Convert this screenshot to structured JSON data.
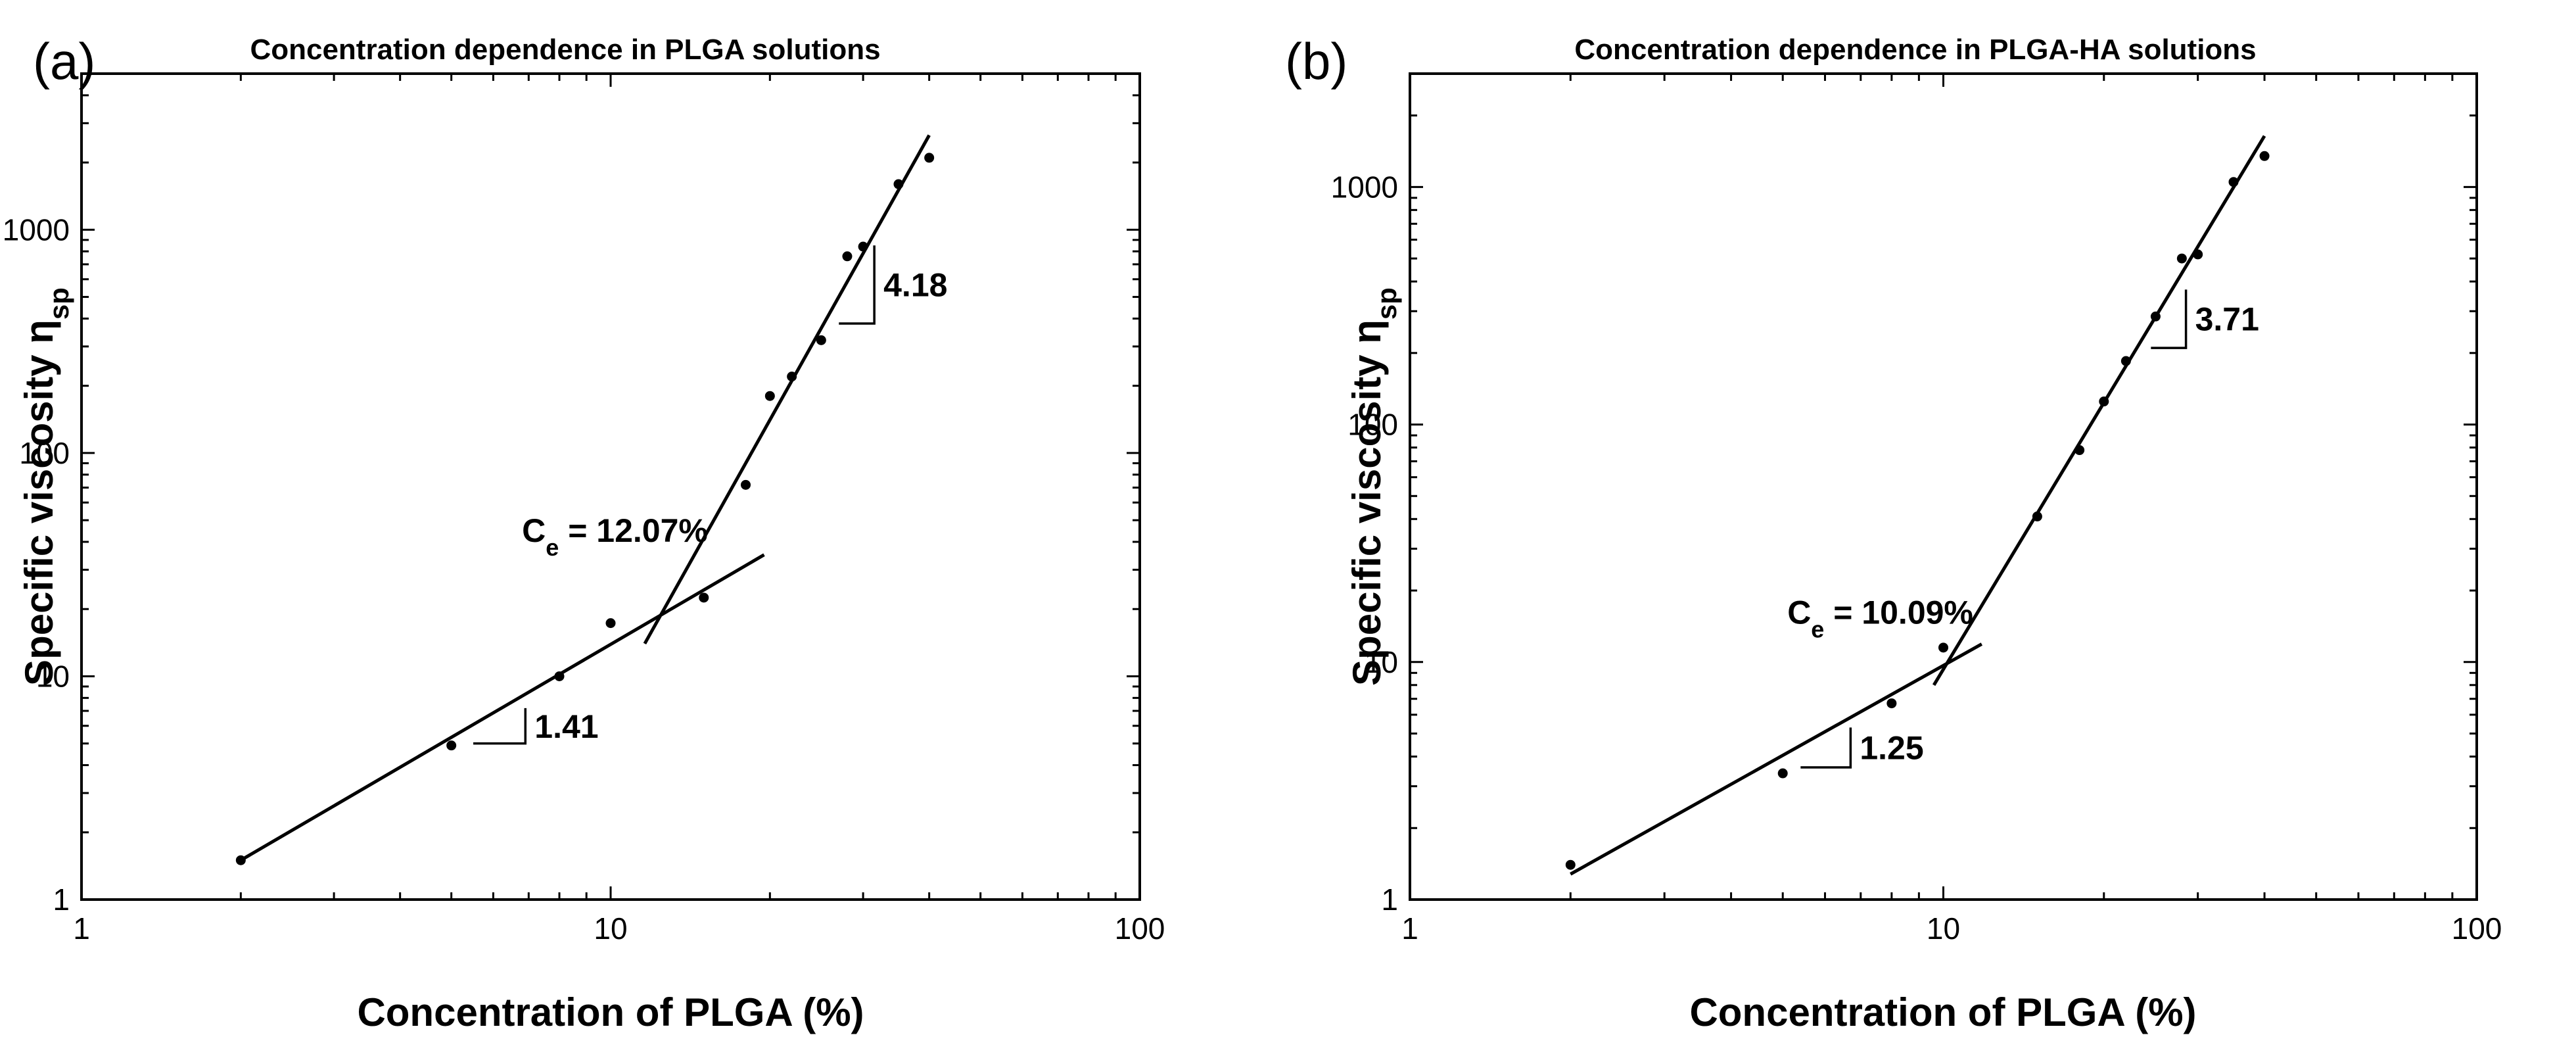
{
  "chart_data": [
    {
      "type": "scatter",
      "panel_label": "(a)",
      "title": "Concentration dependence in PLGA solutions",
      "xlabel": "Concentration of PLGA (%)",
      "ylabel": "Specific viscosity η",
      "ylabel_sub": "sp",
      "x_scale": "log",
      "y_scale": "log",
      "xlim": [
        1,
        100
      ],
      "ylim": [
        1,
        5000
      ],
      "x_ticks": [
        1,
        10,
        100
      ],
      "x_tick_labels": [
        "1",
        "10",
        "100"
      ],
      "y_ticks": [
        1,
        10,
        100,
        1000
      ],
      "y_tick_labels": [
        "1",
        "10",
        "100",
        "1000"
      ],
      "grid": false,
      "series": [
        {
          "x": [
            2,
            5,
            8,
            10,
            15,
            18,
            20,
            22,
            25,
            28,
            30,
            35,
            40
          ],
          "y": [
            1.5,
            4.9,
            10,
            17.3,
            22.5,
            72,
            180,
            220,
            320,
            760,
            840,
            1600,
            2100
          ]
        }
      ],
      "fit_lines": [
        {
          "x": [
            2,
            19.5
          ],
          "y": [
            1.5,
            35
          ],
          "slope_label": "1.41"
        },
        {
          "x": [
            11.6,
            40
          ],
          "y": [
            14,
            2650
          ],
          "slope_label": "4.18"
        }
      ],
      "slope_markers": [
        {
          "x1": 5.5,
          "x2": 6.9,
          "y1": 5.0,
          "y2": 7.2,
          "label": "1.41"
        },
        {
          "x1": 27,
          "x2": 31.5,
          "y1": 380,
          "y2": 850,
          "label": "4.18"
        }
      ],
      "annotation": {
        "text": "C",
        "sub": "e",
        "rest": " = 12.07%",
        "x": 6.8,
        "y": 40
      }
    },
    {
      "type": "scatter",
      "panel_label": "(b)",
      "title": "Concentration dependence in PLGA-HA solutions",
      "xlabel": "Concentration of PLGA (%)",
      "ylabel": "Specific viscosity η",
      "ylabel_sub": "sp",
      "x_scale": "log",
      "y_scale": "log",
      "xlim": [
        1,
        100
      ],
      "ylim": [
        1,
        3000
      ],
      "x_ticks": [
        1,
        10,
        100
      ],
      "x_tick_labels": [
        "1",
        "10",
        "100"
      ],
      "y_ticks": [
        1,
        10,
        100,
        1000
      ],
      "y_tick_labels": [
        "1",
        "10",
        "100",
        "1000"
      ],
      "grid": false,
      "series": [
        {
          "x": [
            2,
            5,
            8,
            10,
            15,
            18,
            20,
            22,
            25,
            28,
            30,
            35,
            40
          ],
          "y": [
            1.4,
            3.4,
            6.7,
            11.5,
            41,
            78,
            125,
            185,
            285,
            500,
            520,
            1050,
            1350
          ]
        }
      ],
      "fit_lines": [
        {
          "x": [
            2,
            11.8
          ],
          "y": [
            1.28,
            11.9
          ],
          "slope_label": "1.25"
        },
        {
          "x": [
            9.6,
            40
          ],
          "y": [
            8.0,
            1640
          ],
          "slope_label": "3.71"
        }
      ],
      "slope_markers": [
        {
          "x1": 5.4,
          "x2": 6.7,
          "y1": 3.6,
          "y2": 5.3,
          "label": "1.25"
        },
        {
          "x1": 24.5,
          "x2": 28.5,
          "y1": 210,
          "y2": 370,
          "label": "3.71"
        }
      ],
      "annotation": {
        "text": "C",
        "sub": "e",
        "rest": " = 10.09%",
        "x": 5.1,
        "y": 14.5
      }
    }
  ]
}
